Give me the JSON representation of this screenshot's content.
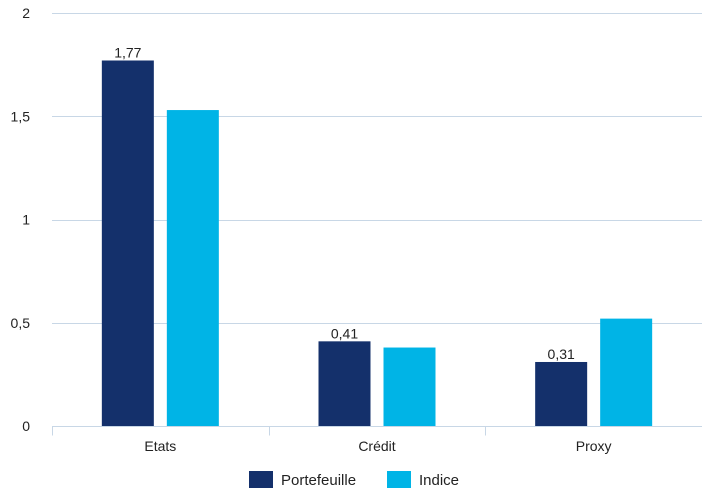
{
  "chart_data": {
    "type": "bar",
    "title": "",
    "xlabel": "",
    "ylabel": "",
    "categories": [
      "Etats",
      "Crédit",
      "Proxy"
    ],
    "series": [
      {
        "name": "Portefeuille",
        "values": [
          1.77,
          0.41,
          0.31
        ],
        "labels": [
          "1,77",
          "0,41",
          "0,31"
        ],
        "color": "#14306b"
      },
      {
        "name": "Indice",
        "values": [
          1.53,
          0.38,
          0.52
        ],
        "color": "#00b4e6"
      }
    ],
    "ylim": [
      0,
      2
    ],
    "yticks": [
      0,
      0.5,
      1,
      1.5,
      2
    ],
    "ytick_labels": [
      "0",
      "0,5",
      "1",
      "1,5",
      "2"
    ],
    "grid": true,
    "gridline_color": "#c8d7e6",
    "legend_position": "bottom"
  }
}
